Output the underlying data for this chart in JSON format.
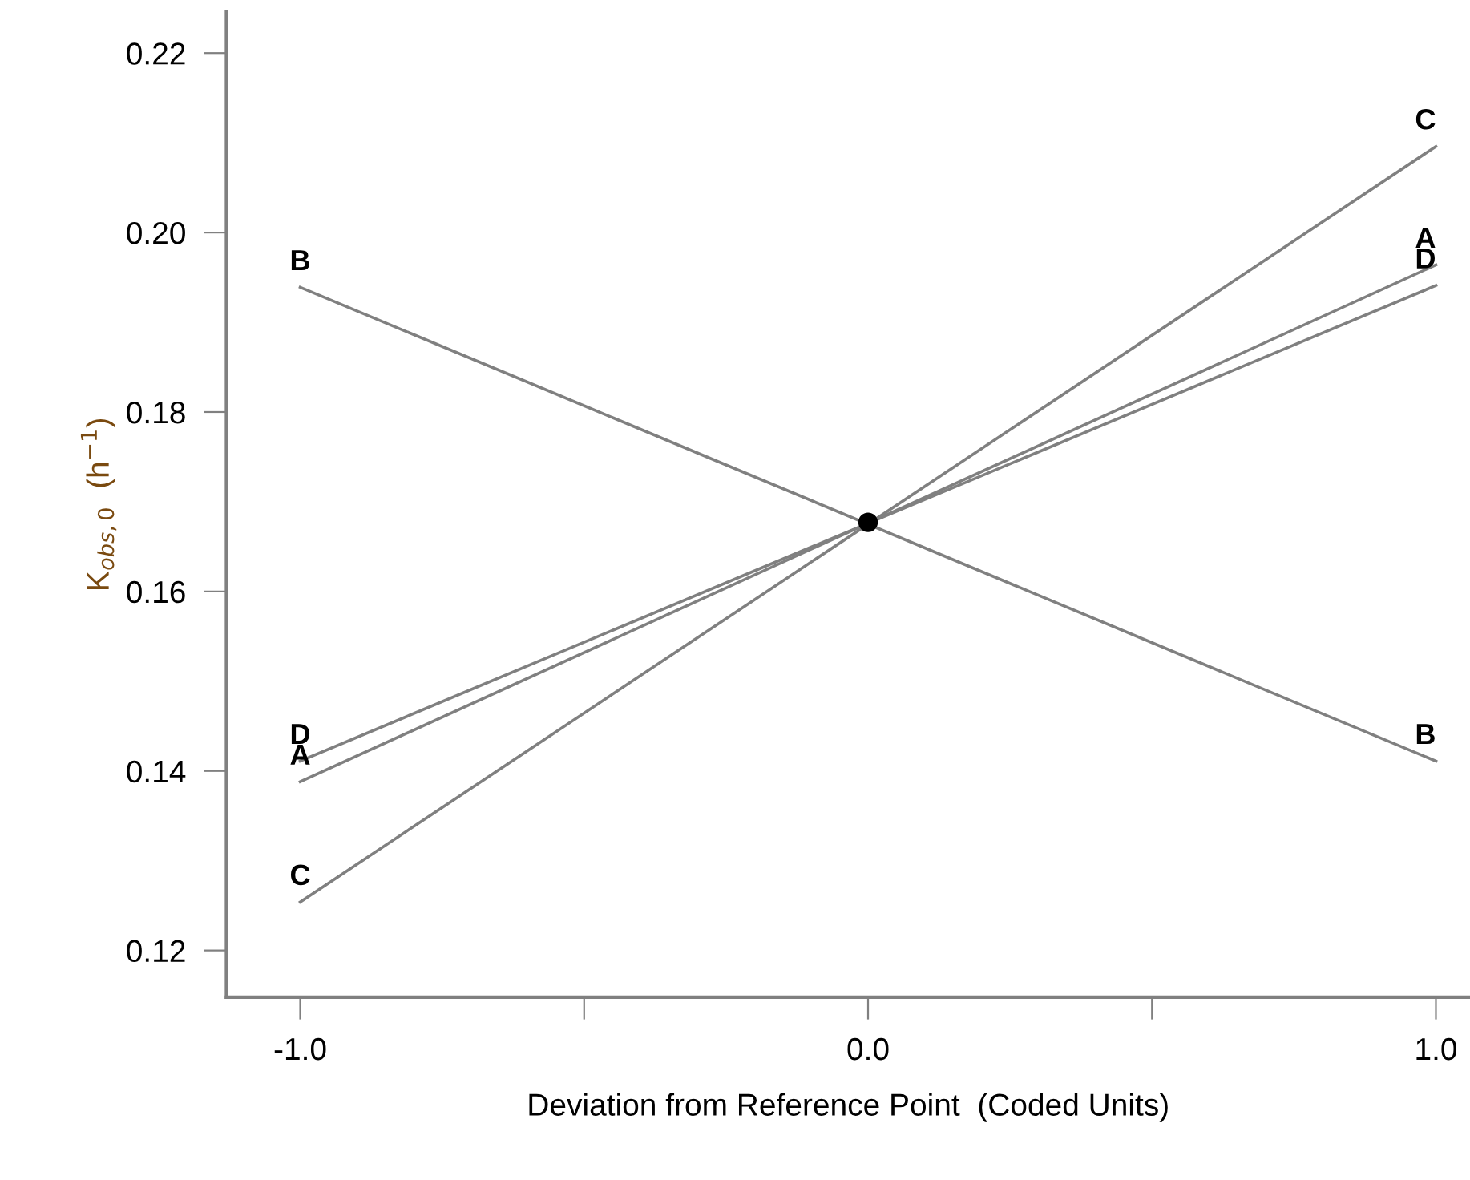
{
  "chart_data": {
    "type": "line",
    "xlabel": "Deviation from Reference Point  (Coded Units)",
    "ylabel": "K$_{obs,0}$  (h$^{−1}$)",
    "x": [
      -1,
      1
    ],
    "series": [
      {
        "name": "A",
        "color": "#808080",
        "values": [
          0.1388,
          0.1964
        ]
      },
      {
        "name": "B",
        "color": "#808080",
        "values": [
          0.1939,
          0.1411
        ]
      },
      {
        "name": "C",
        "color": "#808080",
        "values": [
          0.1254,
          0.2096
        ]
      },
      {
        "name": "D",
        "color": "#808080",
        "values": [
          0.1411,
          0.1941
        ]
      },
      {
        "type": "scatter",
        "color": "#000000",
        "x": [
          0
        ],
        "values": [
          0.1677
        ],
        "marker": "circle"
      }
    ],
    "xlim": [
      -1.13,
      1.06
    ],
    "xticks": [
      {
        "value": -1,
        "label": "-1.0"
      },
      {
        "value": -0.5,
        "label": null
      },
      {
        "value": 0,
        "label": "0.0"
      },
      {
        "value": 0.5,
        "label": null
      },
      {
        "value": 1,
        "label": "1.0"
      }
    ],
    "ylim": [
      0.1148,
      0.2246
    ],
    "yticks": [
      {
        "value": 0.12,
        "label": "0.12"
      },
      {
        "value": 0.14,
        "label": "0.14"
      },
      {
        "value": 0.16,
        "label": "0.16"
      },
      {
        "value": 0.18,
        "label": "0.18"
      },
      {
        "value": 0.2,
        "label": "0.20"
      },
      {
        "value": 0.22,
        "label": "0.22"
      }
    ],
    "grid": false,
    "legend": false,
    "marker": "none",
    "line_style": "solid"
  }
}
